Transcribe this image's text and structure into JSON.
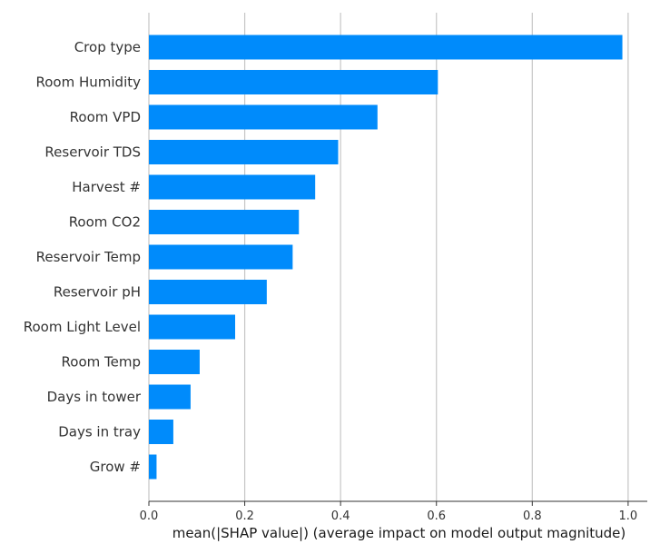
{
  "chart_data": {
    "type": "bar",
    "orientation": "horizontal",
    "categories": [
      "Crop type",
      "Room Humidity",
      "Room VPD",
      "Reservoir TDS",
      "Harvest #",
      "Room CO2",
      "Reservoir Temp",
      "Reservoir pH",
      "Room Light Level",
      "Room Temp",
      "Days in tower",
      "Days in tray",
      "Grow #"
    ],
    "values": [
      0.988,
      0.603,
      0.477,
      0.395,
      0.347,
      0.313,
      0.3,
      0.246,
      0.18,
      0.106,
      0.087,
      0.051,
      0.016
    ],
    "title": "",
    "xlabel": "mean(|SHAP value|) (average impact on model output magnitude)",
    "ylabel": "",
    "xlim": [
      0,
      1.04
    ],
    "xticks": [
      "0.0",
      "0.2",
      "0.4",
      "0.6",
      "0.8",
      "1.0"
    ],
    "xtick_values": [
      0,
      0.2,
      0.4,
      0.6,
      0.8,
      1.0
    ],
    "grid": true,
    "bar_color": "#008bfb"
  }
}
